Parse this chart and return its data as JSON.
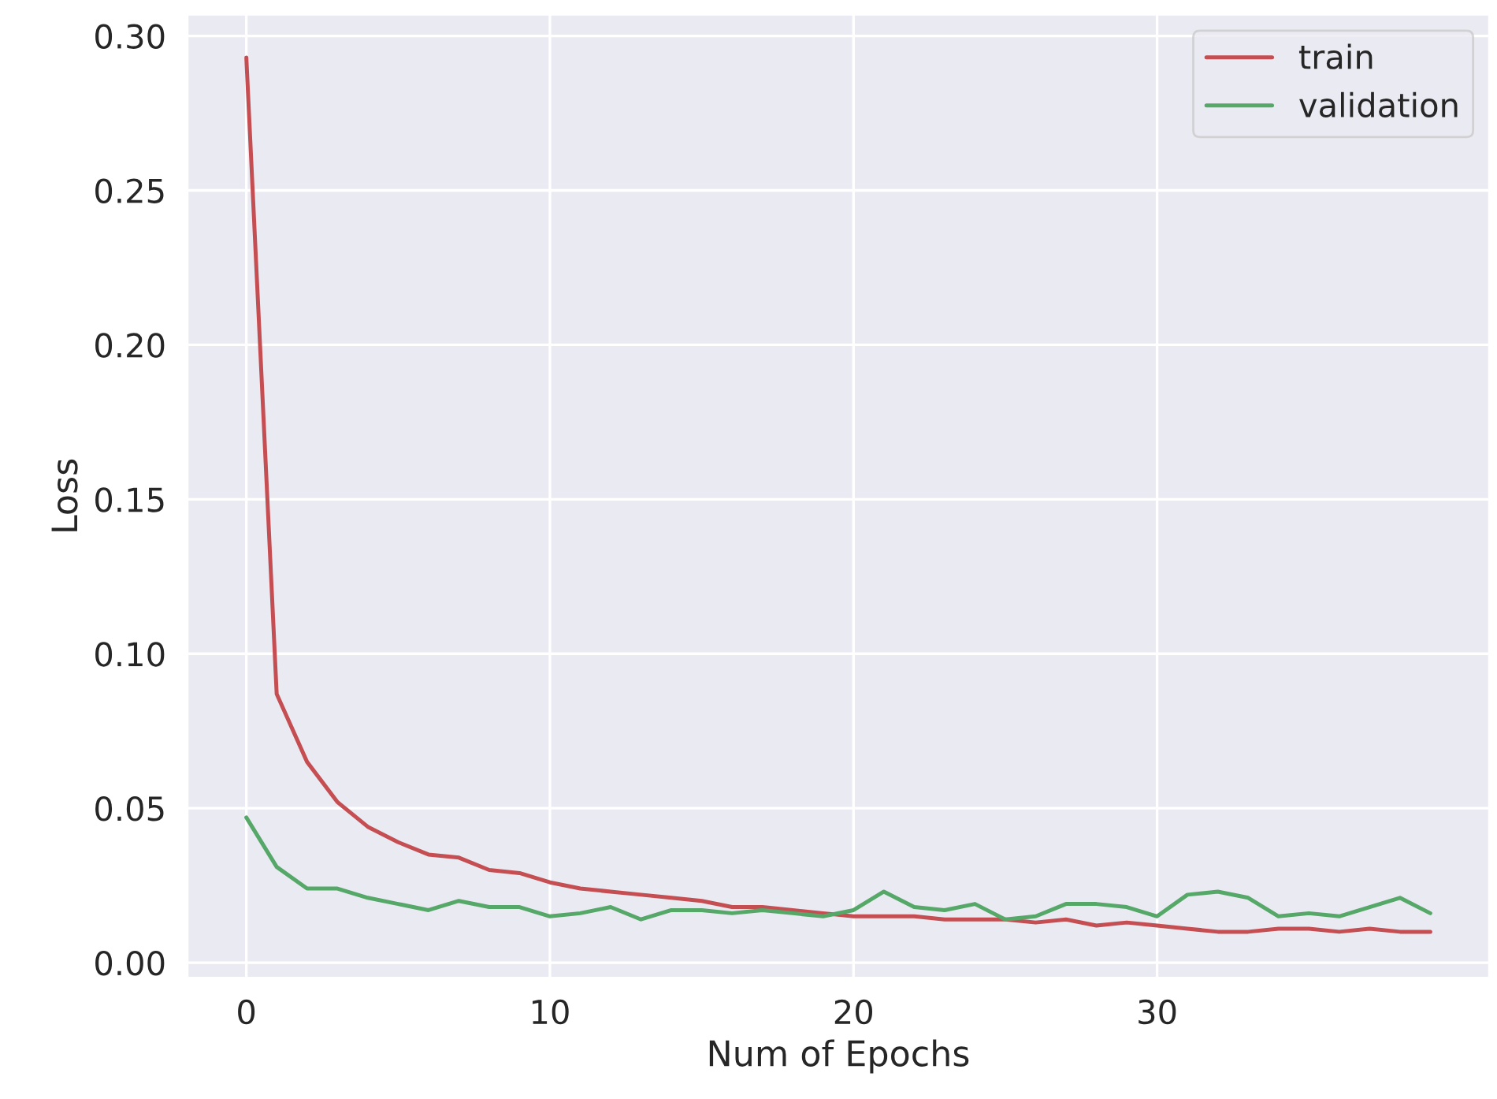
{
  "chart_data": {
    "type": "line",
    "xlabel": "Num of Epochs",
    "ylabel": "Loss",
    "x": [
      0,
      1,
      2,
      3,
      4,
      5,
      6,
      7,
      8,
      9,
      10,
      11,
      12,
      13,
      14,
      15,
      16,
      17,
      18,
      19,
      20,
      21,
      22,
      23,
      24,
      25,
      26,
      27,
      28,
      29,
      30,
      31,
      32,
      33,
      34,
      35,
      36,
      37,
      38,
      39
    ],
    "series": [
      {
        "name": "train",
        "color": "#c44e52",
        "values": [
          0.293,
          0.087,
          0.065,
          0.052,
          0.044,
          0.039,
          0.035,
          0.034,
          0.03,
          0.029,
          0.026,
          0.024,
          0.023,
          0.022,
          0.021,
          0.02,
          0.018,
          0.018,
          0.017,
          0.016,
          0.015,
          0.015,
          0.015,
          0.014,
          0.014,
          0.014,
          0.013,
          0.014,
          0.012,
          0.013,
          0.012,
          0.011,
          0.01,
          0.01,
          0.011,
          0.011,
          0.01,
          0.011,
          0.01,
          0.01
        ]
      },
      {
        "name": "validation",
        "color": "#55a868",
        "values": [
          0.047,
          0.031,
          0.024,
          0.024,
          0.021,
          0.019,
          0.017,
          0.02,
          0.018,
          0.018,
          0.015,
          0.016,
          0.018,
          0.014,
          0.017,
          0.017,
          0.016,
          0.017,
          0.016,
          0.015,
          0.017,
          0.023,
          0.018,
          0.017,
          0.019,
          0.014,
          0.015,
          0.019,
          0.019,
          0.018,
          0.015,
          0.022,
          0.023,
          0.021,
          0.015,
          0.016,
          0.015,
          0.018,
          0.021,
          0.016
        ]
      }
    ],
    "xlim": [
      -1.95,
      40.95
    ],
    "ylim": [
      -0.005,
      0.307
    ],
    "xticks": [
      0,
      10,
      20,
      30
    ],
    "yticks": [
      {
        "value": 0,
        "label": "0.00"
      },
      {
        "value": 0.05,
        "label": "0.05"
      },
      {
        "value": 0.1,
        "label": "0.10"
      },
      {
        "value": 0.15,
        "label": "0.15"
      },
      {
        "value": 0.2,
        "label": "0.20"
      },
      {
        "value": 0.25,
        "label": "0.25"
      },
      {
        "value": 0.3,
        "label": "0.30"
      }
    ],
    "grid": true,
    "legend": "top right",
    "marker": "none",
    "line_style": "solid"
  }
}
